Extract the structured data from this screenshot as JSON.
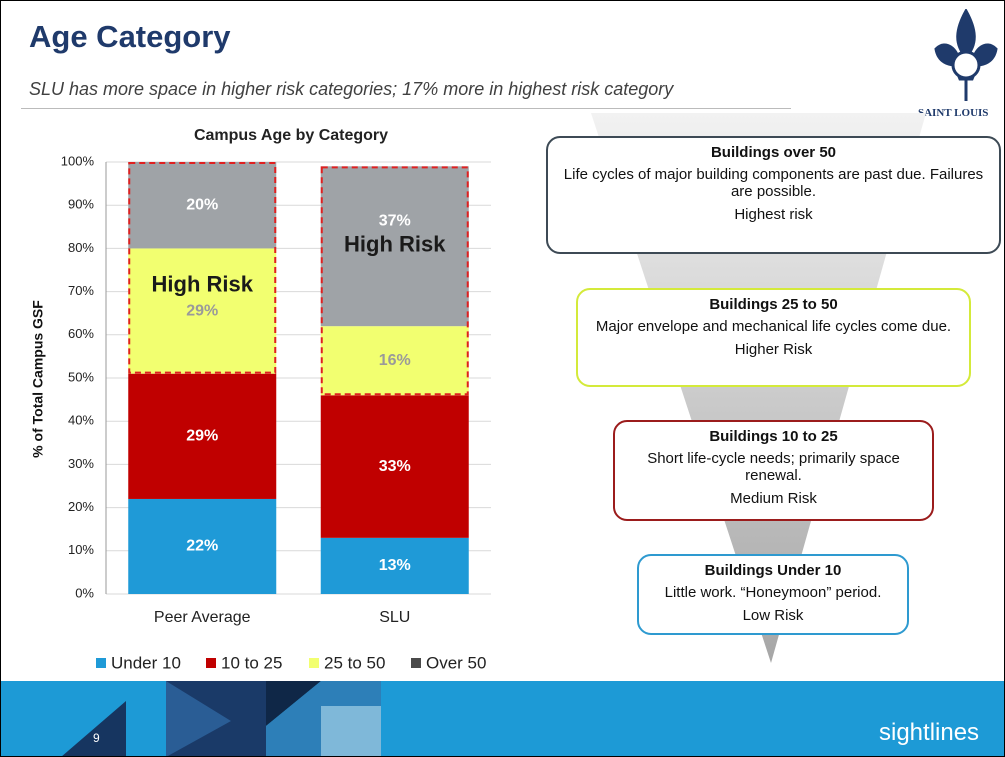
{
  "slide": {
    "title": "Age Category",
    "subtitle": "SLU has more space in higher risk categories; 17% more in highest risk category",
    "logo_text": "SAINT LOUIS",
    "page_number": "9",
    "brand": "sightlines"
  },
  "chart_data": {
    "type": "stacked_bar",
    "title": "Campus Age by Category",
    "y_label": "% of Total Campus GSF",
    "categories": [
      "Peer Average",
      "SLU"
    ],
    "series": [
      {
        "name": "Under 10",
        "color": "#1f9ad7",
        "values": [
          22,
          13
        ],
        "value_labels": [
          "22%",
          "13%"
        ]
      },
      {
        "name": "10 to 25",
        "color": "#c00000",
        "values": [
          29,
          33
        ],
        "value_labels": [
          "29%",
          "33%"
        ]
      },
      {
        "name": "25 to 50",
        "color": "#f2ff70",
        "values": [
          29,
          16
        ],
        "value_labels": [
          "29%",
          "16%"
        ]
      },
      {
        "name": "Over 50",
        "color": "#9fa3a7",
        "values": [
          20,
          37
        ],
        "value_labels": [
          "20%",
          "37%"
        ]
      }
    ],
    "annotations": [
      "High Risk",
      "High Risk"
    ],
    "ylim": [
      0,
      100
    ],
    "yticks": [
      {
        "value": 0,
        "label": "0%"
      },
      {
        "value": 10,
        "label": "10%"
      },
      {
        "value": 20,
        "label": "20%"
      },
      {
        "value": 30,
        "label": "30%"
      },
      {
        "value": 40,
        "label": "40%"
      },
      {
        "value": 50,
        "label": "50%"
      },
      {
        "value": 60,
        "label": "60%"
      },
      {
        "value": 70,
        "label": "70%"
      },
      {
        "value": 80,
        "label": "80%"
      },
      {
        "value": 90,
        "label": "90%"
      },
      {
        "value": 100,
        "label": "100%"
      }
    ],
    "grid": true,
    "legend": "bottom"
  },
  "boxes": [
    {
      "title": "Buildings over 50",
      "description": "Life cycles of major building components are past due. Failures are possible.",
      "risk": "Highest risk"
    },
    {
      "title": "Buildings 25 to 50",
      "description": "Major envelope and mechanical life cycles come due.",
      "risk": "Higher Risk"
    },
    {
      "title": "Buildings 10 to 25",
      "description": "Short life-cycle needs; primarily space renewal.",
      "risk": "Medium Risk"
    },
    {
      "title": "Buildings Under 10",
      "description": "Little work. “Honeymoon” period.",
      "risk": "Low Risk"
    }
  ]
}
